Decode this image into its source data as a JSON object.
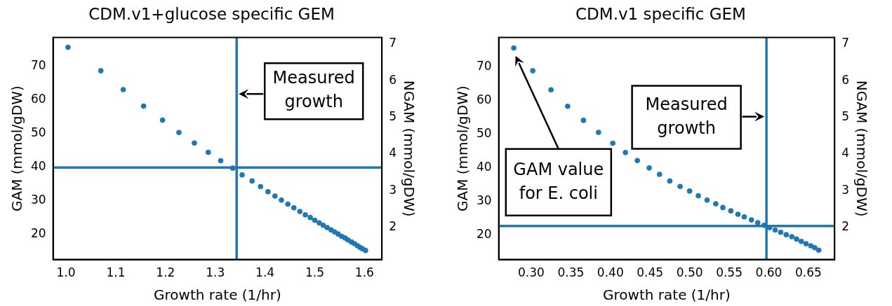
{
  "chart_data": [
    {
      "type": "scatter",
      "title": "CDM.v1+glucose specific GEM",
      "xlabel": "Growth rate (1/hr)",
      "ylabel": "GAM (mmol/gDW)",
      "y2label": "NGAM (mmol/gDW)",
      "x": [
        1.004,
        1.07,
        1.115,
        1.156,
        1.194,
        1.227,
        1.258,
        1.286,
        1.311,
        1.335,
        1.354,
        1.374,
        1.391,
        1.406,
        1.42,
        1.433,
        1.446,
        1.458,
        1.47,
        1.481,
        1.491,
        1.5,
        1.509,
        1.517,
        1.525,
        1.533,
        1.54,
        1.547,
        1.554,
        1.561,
        1.567,
        1.574,
        1.58,
        1.586,
        1.591,
        1.596,
        1.602
      ],
      "series": [
        {
          "color": "#1f77b4",
          "values": [
            75.7,
            68.7,
            63.1,
            58.2,
            54.0,
            50.3,
            47.2,
            44.4,
            41.9,
            39.7,
            37.7,
            35.9,
            34.2,
            32.7,
            31.4,
            30.2,
            29.0,
            27.9,
            26.8,
            25.8,
            25.0,
            24.2,
            23.4,
            22.7,
            22.0,
            21.3,
            20.7,
            20.1,
            19.4,
            18.9,
            18.3,
            17.7,
            17.2,
            16.6,
            16.1,
            15.7,
            15.2
          ]
        }
      ],
      "xlim": [
        0.974,
        1.635
      ],
      "xticks": [
        {
          "value": 1,
          "label": "1.0"
        },
        1.1,
        1.2,
        1.3,
        1.4,
        1.5,
        1.6
      ],
      "ylim": [
        12.5,
        78.6
      ],
      "yticks": [
        20,
        30,
        40,
        50,
        60,
        70
      ],
      "y2lim": [
        1.12,
        7.18
      ],
      "y2ticks": [
        2,
        3,
        4,
        5,
        6,
        7
      ],
      "ref_lines": [
        {
          "axis": "x",
          "value": 1.343,
          "color": "#1f77b4"
        },
        {
          "axis": "y",
          "value": 39.9,
          "color": "#1f77b4"
        }
      ],
      "annotations": [
        {
          "text": "Measured growth",
          "x": 1.343,
          "y": 61.8
        }
      ],
      "marker": "circle",
      "grid": false,
      "legend": false
    },
    {
      "type": "scatter",
      "title": "CDM.v1 specific GEM",
      "xlabel": "Growth rate (1/hr)",
      "ylabel": "GAM (mmol/gDW)",
      "y2label": "NGAM (mmol/gDW)",
      "x": [
        0.278,
        0.302,
        0.325,
        0.346,
        0.366,
        0.385,
        0.403,
        0.419,
        0.434,
        0.449,
        0.462,
        0.475,
        0.488,
        0.5,
        0.511,
        0.522,
        0.533,
        0.542,
        0.552,
        0.561,
        0.569,
        0.578,
        0.586,
        0.594,
        0.601,
        0.608,
        0.615,
        0.622,
        0.629,
        0.635,
        0.641,
        0.647,
        0.653,
        0.658,
        0.663
      ],
      "series": [
        {
          "color": "#1f77b4",
          "values": [
            75.7,
            68.9,
            63.2,
            58.3,
            54.1,
            50.5,
            47.3,
            44.5,
            42.1,
            39.9,
            38.0,
            36.0,
            34.4,
            33.0,
            31.6,
            30.3,
            29.2,
            28.1,
            27.1,
            26.1,
            25.3,
            24.4,
            23.6,
            22.8,
            22.1,
            21.4,
            20.7,
            20.0,
            19.4,
            18.7,
            18.0,
            17.3,
            16.7,
            16.1,
            15.4
          ]
        }
      ],
      "xlim": [
        0.259,
        0.683
      ],
      "xticks": [
        {
          "value": 0.3,
          "label": "0.30"
        },
        0.35,
        {
          "value": 0.4,
          "label": "0.40"
        },
        0.45,
        {
          "value": 0.5,
          "label": "0.50"
        },
        0.55,
        {
          "value": 0.6,
          "label": "0.60"
        },
        0.65
      ],
      "ylim": [
        12.6,
        78.8
      ],
      "yticks": [
        20,
        30,
        40,
        50,
        60,
        70
      ],
      "y2lim": [
        1.12,
        7.18
      ],
      "y2ticks": [
        2,
        3,
        4,
        5,
        6,
        7
      ],
      "ref_lines": [
        {
          "axis": "x",
          "value": 0.597,
          "color": "#1f77b4"
        },
        {
          "axis": "y",
          "value": 22.6,
          "color": "#1f77b4"
        }
      ],
      "annotations": [
        {
          "text": "Measured growth",
          "x": 0.597,
          "y": 55.2
        },
        "GAM value for E. coli"
      ],
      "marker": "circle",
      "grid": false,
      "legend": false
    }
  ]
}
